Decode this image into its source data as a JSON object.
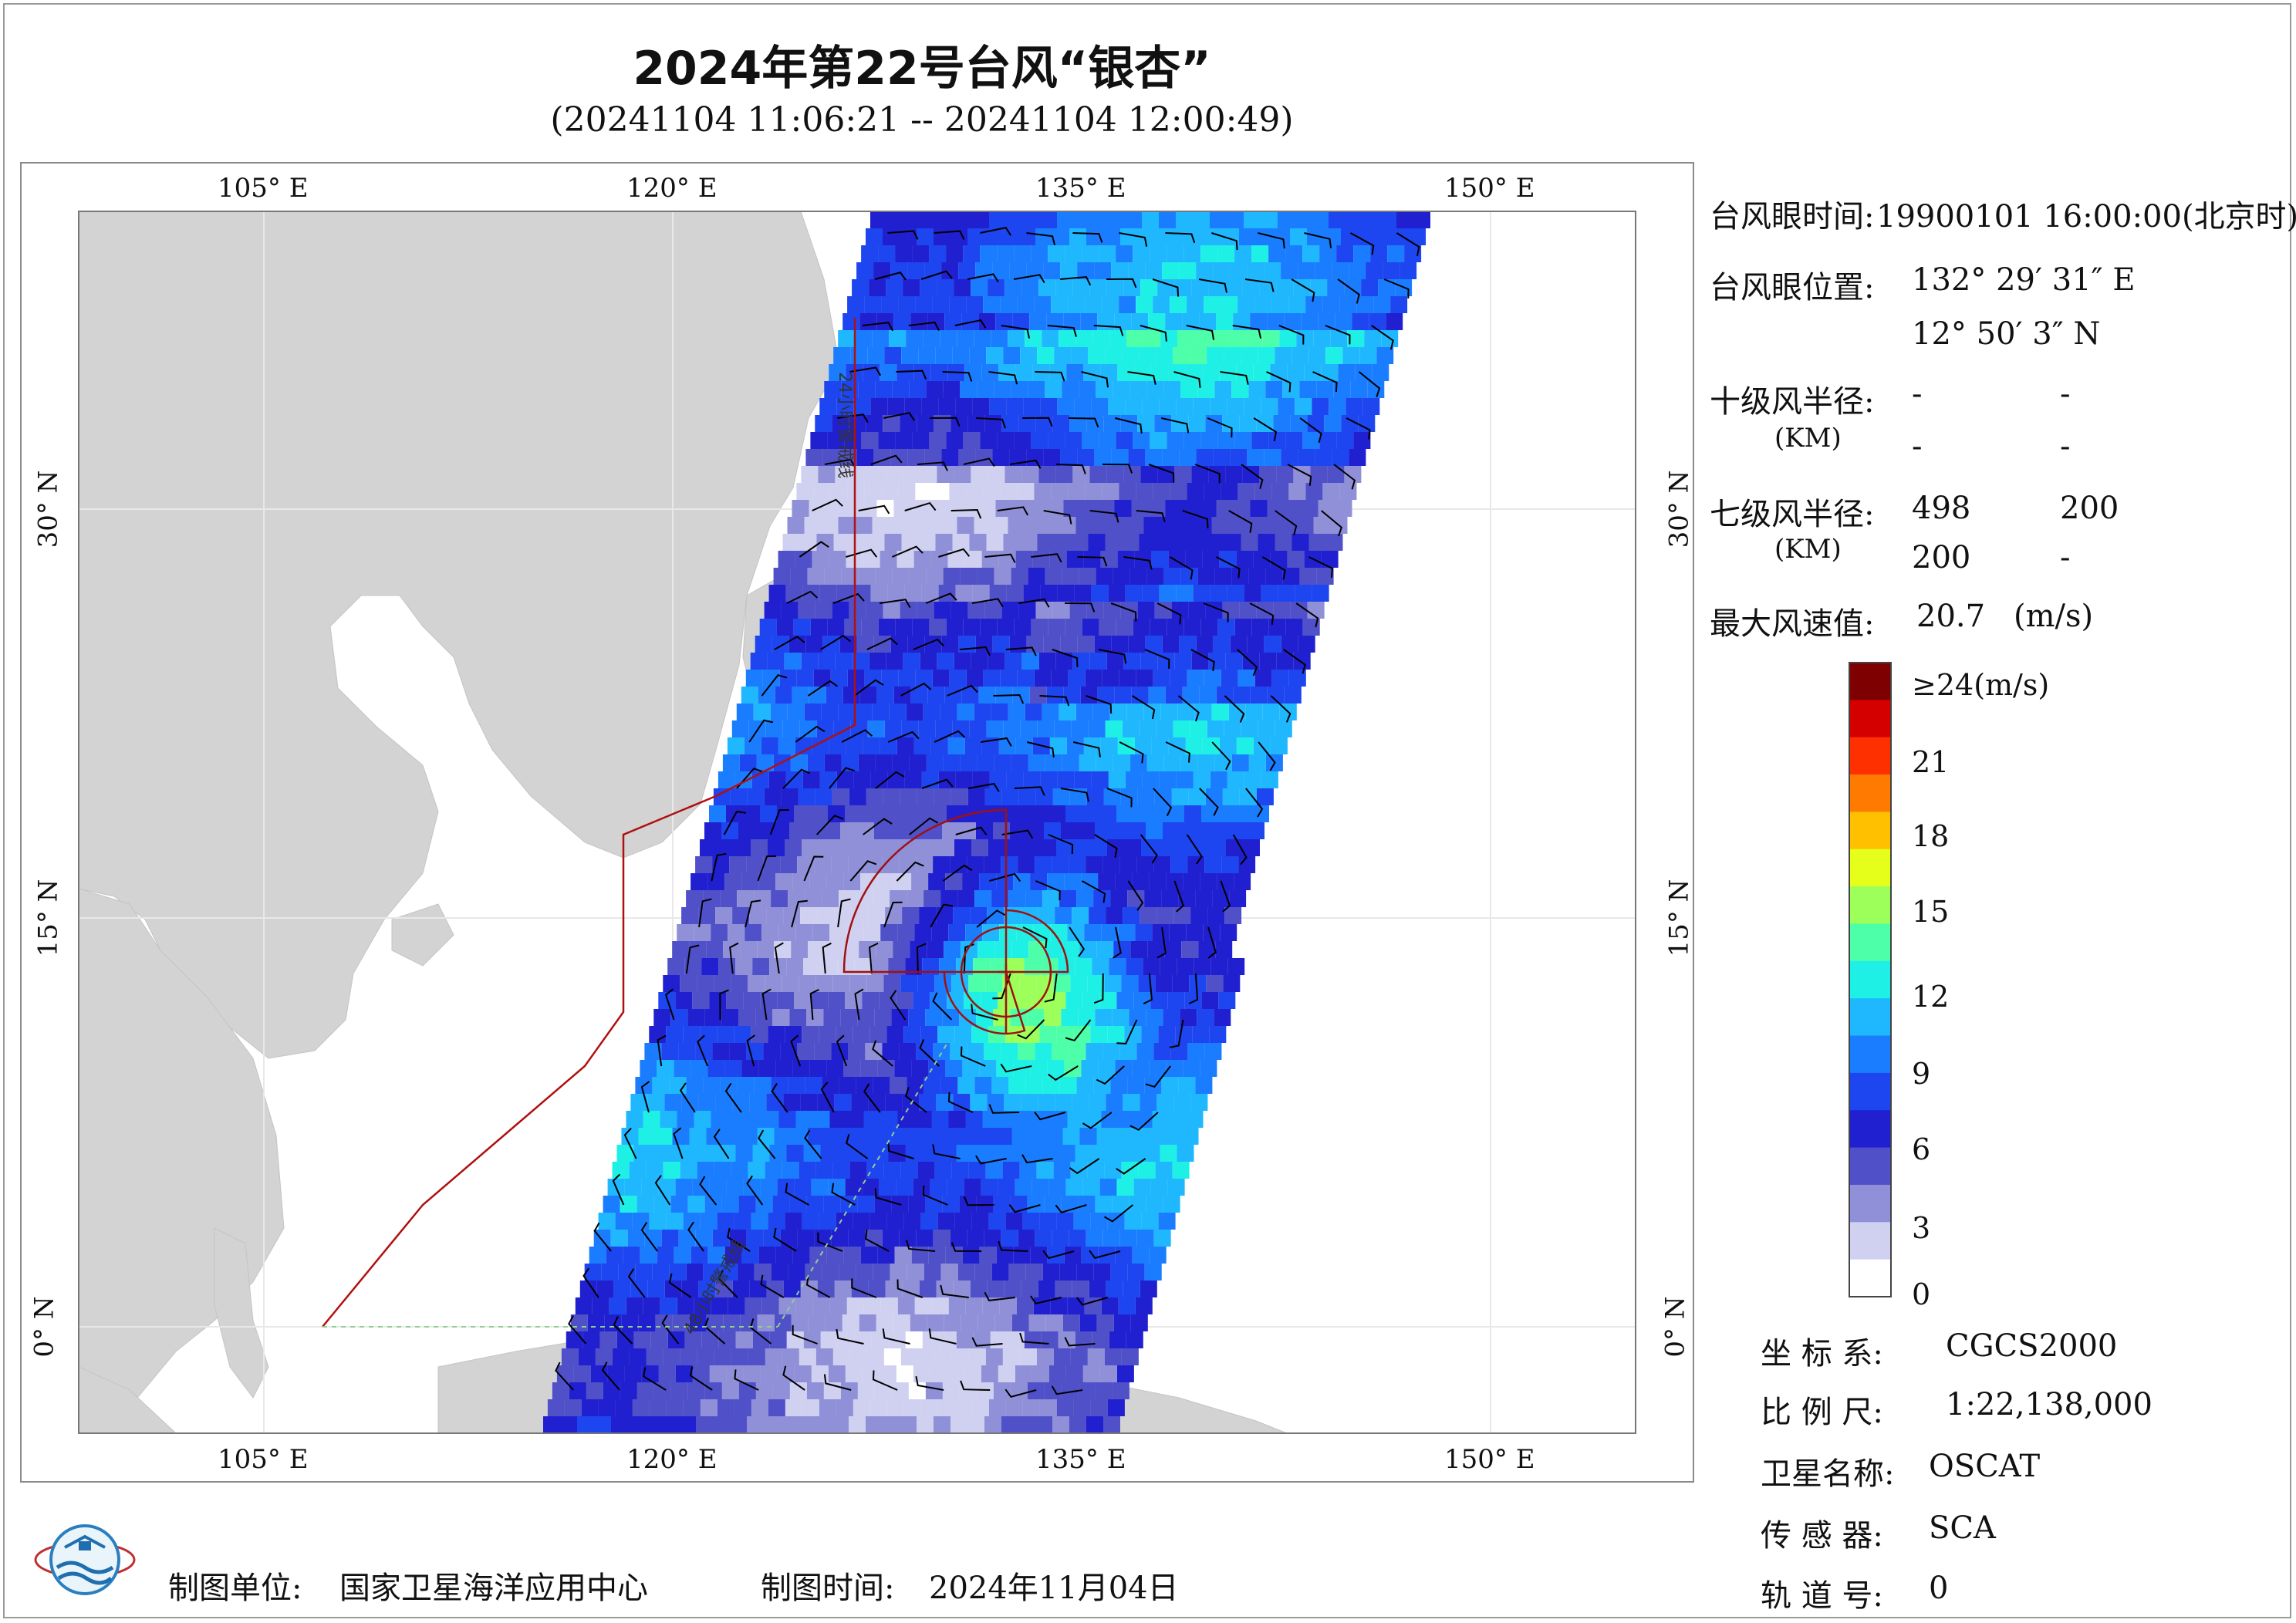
{
  "title": "2024年第22号台风“银杏”",
  "subtitle": "(20241104 11:06:21 -- 20241104 12:00:49)",
  "axes": {
    "top_ticks": [
      "105° E",
      "120° E",
      "135° E",
      "150° E"
    ],
    "bottom_ticks": [
      "105° E",
      "120° E",
      "135° E",
      "150° E"
    ],
    "left_ticks": [
      "30° N",
      "15° N",
      "0° N"
    ],
    "right_ticks": [
      "30° N",
      "15° N",
      "0° N"
    ]
  },
  "map_labels": {
    "boundary_upper": "24小时警戒线",
    "boundary_lower": "48小时警戒线"
  },
  "info": {
    "eye_time_label": "台风眼时间:",
    "eye_time_value": "19900101 16:00:00(北京时)",
    "eye_pos_label": "台风眼位置:",
    "eye_lon": "132° 29′ 31″ E",
    "eye_lat": "12° 50′ 3″ N",
    "r10_label": "十级风半径:",
    "r10_unit": "(KM)",
    "r10_values": [
      "-",
      "-",
      "-",
      "-"
    ],
    "r7_label": "七级风半径:",
    "r7_unit": "(KM)",
    "r7_values": [
      "498",
      "200",
      "200",
      "-"
    ],
    "max_wind_label": "最大风速值:",
    "max_wind_value": "20.7",
    "max_wind_unit": "(m/s)"
  },
  "colorbar": {
    "top_label": "≥24(m/s)",
    "ticks": [
      "21",
      "18",
      "15",
      "12",
      "9",
      "6",
      "3",
      "0"
    ],
    "colors": [
      "#7f0000",
      "#d40000",
      "#ff3000",
      "#ff7a00",
      "#ffc000",
      "#e6ff1a",
      "#9dff5a",
      "#4dffa8",
      "#1ff0e6",
      "#1fb8ff",
      "#1a7dff",
      "#1d45f0",
      "#2020d0",
      "#5050c8",
      "#9090d8",
      "#d0d0f0",
      "#ffffff"
    ]
  },
  "meta": {
    "coord_label": "坐 标 系:",
    "coord_value": "CGCS2000",
    "scale_label": "比 例 尺:",
    "scale_value": "1:22,138,000",
    "satellite_label": "卫星名称:",
    "satellite_value": "OSCAT",
    "sensor_label": "传 感 器:",
    "sensor_value": "SCA",
    "orbit_label": "轨 道 号:",
    "orbit_value": "0"
  },
  "footer": {
    "unit_label": "制图单位:",
    "unit_value": "国家卫星海洋应用中心",
    "date_label": "制图时间:",
    "date_value": "2024年11月04日"
  },
  "style": {
    "land": "#d3d3d3",
    "sea": "#ffffff",
    "boundary": "#b01010",
    "grid": "#e6e6e6"
  }
}
